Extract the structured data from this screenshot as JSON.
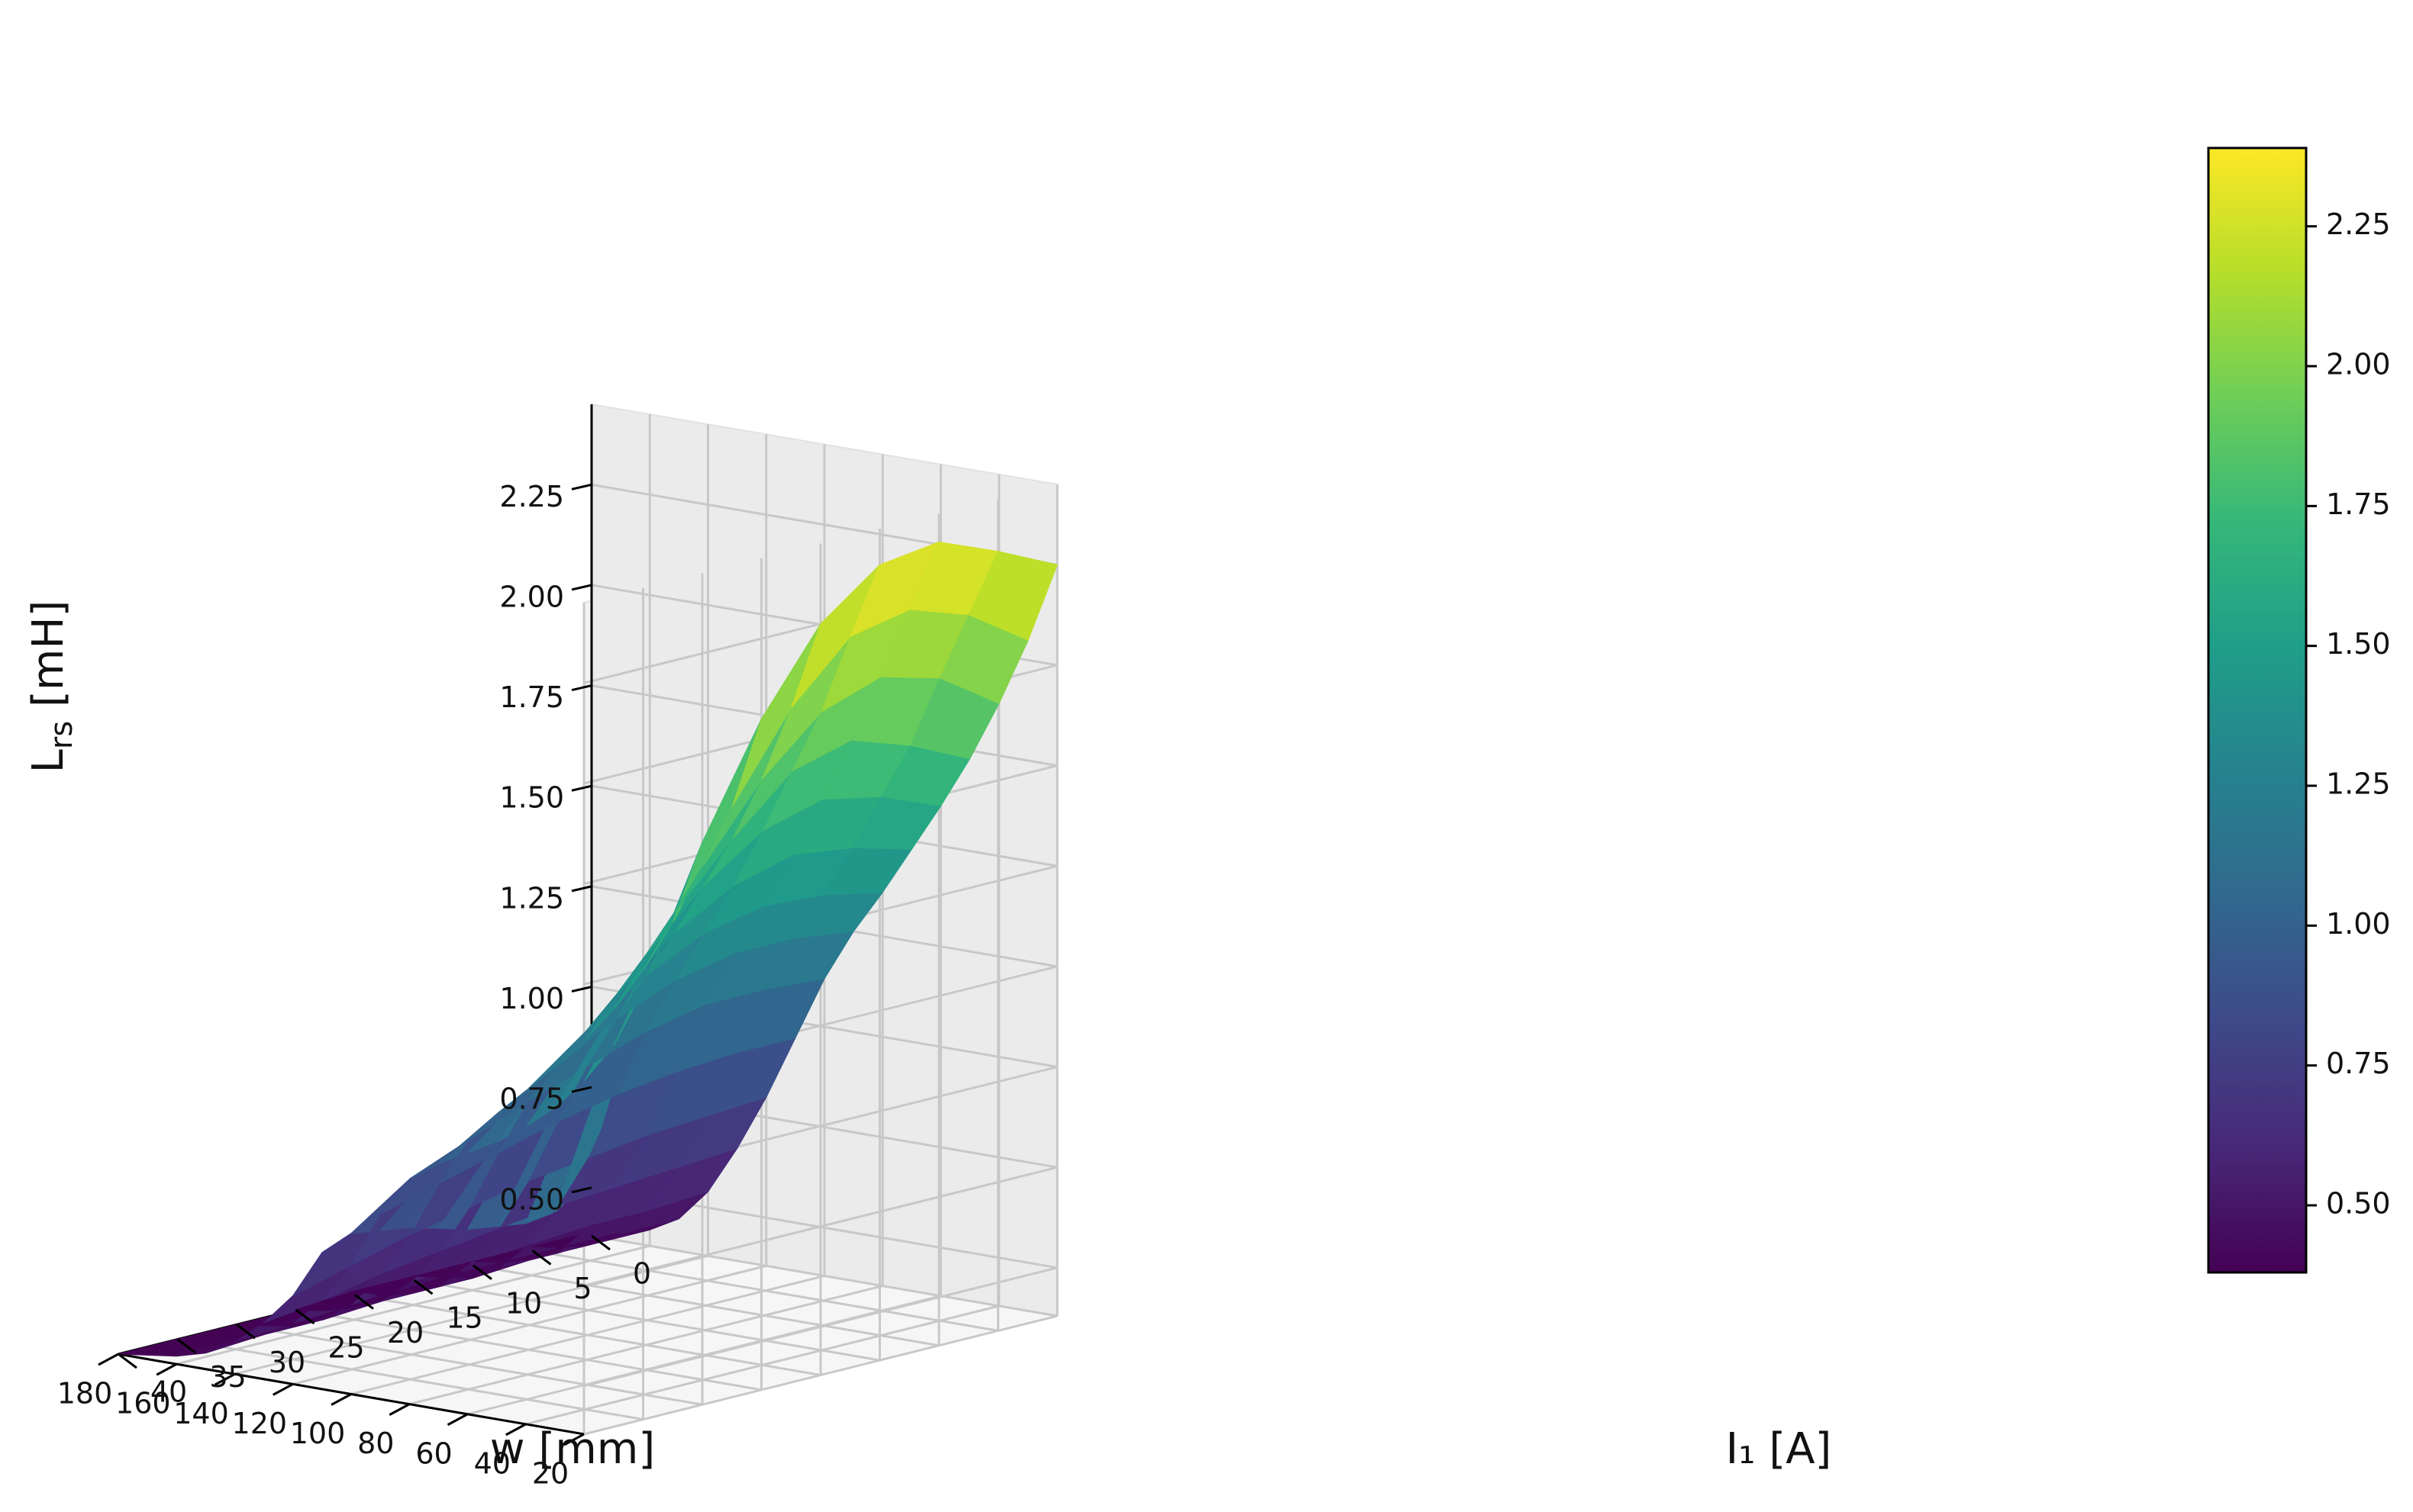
{
  "chart_data": {
    "type": "surface",
    "colormap": "viridis",
    "x": {
      "label": "w [mm]",
      "range": [
        20,
        180
      ],
      "ticks": [
        "20",
        "40",
        "60",
        "80",
        "100",
        "120",
        "140",
        "160",
        "180"
      ]
    },
    "y": {
      "label": "I₁ [A]",
      "range": [
        0,
        40
      ],
      "ticks": [
        "0",
        "5",
        "10",
        "15",
        "20",
        "25",
        "30",
        "35",
        "40"
      ]
    },
    "z": {
      "label_main": "L",
      "label_sub": "rs",
      "label_unit": " [mH]",
      "range": [
        0.38,
        2.45
      ],
      "ticks": [
        "0.50",
        "0.75",
        "1.00",
        "1.25",
        "1.50",
        "1.75",
        "2.00",
        "2.25"
      ]
    },
    "colorbar": {
      "range": [
        0.38,
        2.39
      ],
      "ticks": [
        "0.50",
        "0.75",
        "1.00",
        "1.25",
        "1.50",
        "1.75",
        "2.00",
        "2.25"
      ]
    },
    "surface": {
      "w": [
        20,
        30,
        40,
        50,
        60,
        70,
        80,
        90,
        100,
        110,
        120,
        130,
        140,
        150,
        160,
        170,
        180
      ],
      "I1": [
        0,
        5,
        10,
        15,
        20,
        25,
        30,
        35,
        40
      ],
      "Lrs": [
        [
          2.25,
          2.32,
          2.38,
          2.36,
          2.25,
          2.05,
          1.78,
          1.45,
          1.0
        ],
        [
          2.05,
          2.15,
          2.2,
          2.17,
          2.03,
          1.82,
          1.57,
          1.3,
          0.92
        ],
        [
          1.88,
          1.98,
          2.02,
          1.97,
          1.84,
          1.66,
          1.44,
          1.2,
          0.88
        ],
        [
          1.73,
          1.8,
          1.85,
          1.81,
          1.68,
          1.53,
          1.33,
          1.12,
          0.86
        ],
        [
          1.6,
          1.66,
          1.69,
          1.65,
          1.55,
          1.41,
          1.24,
          1.06,
          0.84
        ],
        [
          1.48,
          1.52,
          1.54,
          1.5,
          1.42,
          1.3,
          1.16,
          1.01,
          0.83
        ],
        [
          1.36,
          1.39,
          1.4,
          1.37,
          1.3,
          1.2,
          1.09,
          0.97,
          0.82
        ],
        [
          1.25,
          1.27,
          1.27,
          1.24,
          1.18,
          1.1,
          1.02,
          0.93,
          0.8
        ],
        [
          1.12,
          1.13,
          1.13,
          1.1,
          1.05,
          1.0,
          0.94,
          0.88,
          0.78
        ],
        [
          0.96,
          0.96,
          0.95,
          0.93,
          0.9,
          0.86,
          0.82,
          0.78,
          0.72
        ],
        [
          0.8,
          0.79,
          0.78,
          0.76,
          0.74,
          0.71,
          0.68,
          0.64,
          0.6
        ],
        [
          0.66,
          0.65,
          0.64,
          0.63,
          0.61,
          0.59,
          0.57,
          0.54,
          0.52
        ],
        [
          0.54,
          0.53,
          0.53,
          0.52,
          0.51,
          0.5,
          0.48,
          0.47,
          0.46
        ],
        [
          0.46,
          0.46,
          0.45,
          0.45,
          0.44,
          0.44,
          0.43,
          0.43,
          0.42
        ],
        [
          0.42,
          0.42,
          0.42,
          0.41,
          0.41,
          0.41,
          0.4,
          0.4,
          0.4
        ],
        [
          0.4,
          0.4,
          0.4,
          0.4,
          0.39,
          0.39,
          0.39,
          0.39,
          0.39
        ],
        [
          0.39,
          0.39,
          0.39,
          0.39,
          0.39,
          0.38,
          0.38,
          0.38,
          0.38
        ]
      ]
    },
    "grid": true
  }
}
